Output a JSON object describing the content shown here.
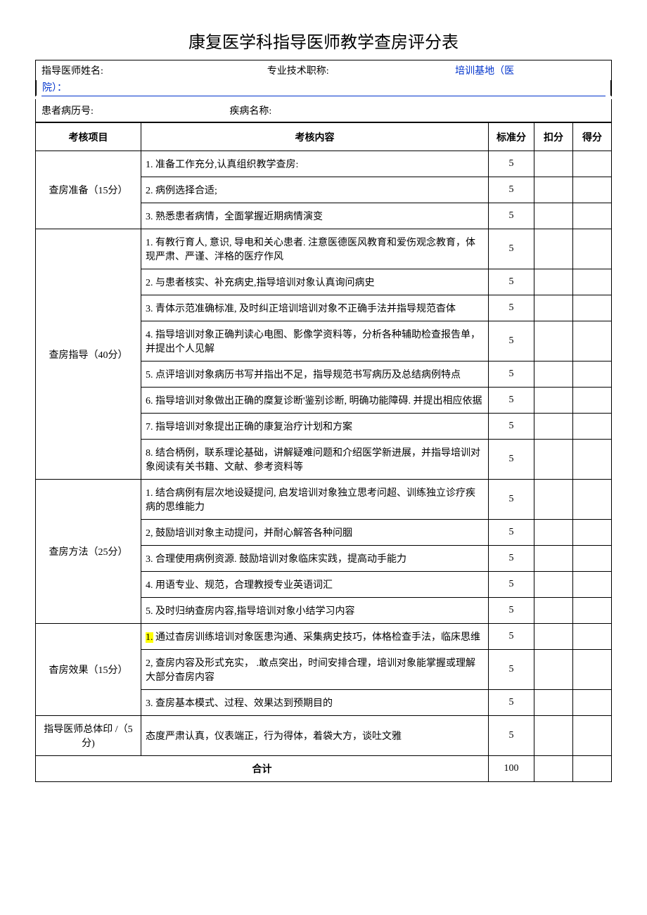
{
  "title": "康复医学科指导医师教学查房评分表",
  "header": {
    "instructor_name_label": "指导医师姓名:",
    "professional_title_label": "专业技术职称:",
    "training_base_label": "培训基地（医",
    "hospital_close": "院）：",
    "patient_id_label": "患者病历号:",
    "disease_name_label": "疾病名称:"
  },
  "columns": {
    "category": "考核项目",
    "content": "考核内容",
    "standard_score": "标准分",
    "deduction": "扣分",
    "final_score": "得分"
  },
  "sections": [
    {
      "category": "查房准备（15分）",
      "rows": [
        {
          "content": "1. 准备工作充分,认真组织教学查房:",
          "score": "5"
        },
        {
          "content": "2. 病例选择合适;",
          "score": "5"
        },
        {
          "content": "3. 熟悉患者病情，全面掌握近期病情演变",
          "score": "5"
        }
      ]
    },
    {
      "category": "查房指导（40分）",
      "rows": [
        {
          "content": "1. 有教行育人, 意识, 导电和关心患者. 注意医德医风教育和爱伤观念教育，体现严肃、严谨、泮格的医疗作风",
          "score": "5"
        },
        {
          "content": "2. 与患者核实、补充病史,指导培训对象认真询问病史",
          "score": "5"
        },
        {
          "content": "3. 青体示范准确标准, 及时纠正培训培训对象不正确手法并指导规范杳体",
          "score": "5"
        },
        {
          "content": "4. 指导培训对象正确判读心电图、影像学资料等，分析各种辅助检查报告单，并提出个人见解",
          "score": "5"
        },
        {
          "content": "5. 点评培训对象病历书写并指出不足，指导规范书写病历及总结病例特点",
          "score": "5"
        },
        {
          "content": "6. 指导培训对象做出正确的糜复诊断'鉴别诊断, 明确功能障碍. 并提出相应依据",
          "score": "5"
        },
        {
          "content": "7. 指导培训对象提出正确的康复治疗计划和方案",
          "score": "5"
        },
        {
          "content": "8. 结合柄例，联系理论基础，讲解疑难问题和介绍医学新进展，并指导培训对象阅读有关书籍、文献、参考资料等",
          "score": "5"
        }
      ]
    },
    {
      "category": "查房方法（25分）",
      "rows": [
        {
          "content": "1. 结合病例有层次地设疑提问, 启发培训对象独立思考问超、训练独立诊疗疾病的思维能力",
          "score": "5"
        },
        {
          "content": "2, 鼓励培训对象主动提问，并耐心解答各种问胭",
          "score": "5"
        },
        {
          "content": "3. 合理使用病例资源. 鼓励培训对象临床实践，提高动手能力",
          "score": "5"
        },
        {
          "content": "4. 用语专业、规范，合理教授专业英语词汇",
          "score": "5"
        },
        {
          "content": "5. 及时归纳查房内容,指导培训对象小结学习内容",
          "score": "5"
        }
      ]
    },
    {
      "category": "杳房效果（15分）",
      "rows": [
        {
          "content_prefix": "1.",
          "content_rest": " 通过杳房训练培训对象医患沟通、采集病史技巧，体格检查手法，临床思维",
          "score": "5",
          "highlight_prefix": true
        },
        {
          "content": "2, 查房内容及形式充实， .敢点突出，时间安排合理，培训对象能掌握或理解大部分杳房内容",
          "score": "5"
        },
        {
          "content": "3. 查房基本模式、过程、效果达到预期目的",
          "score": "5"
        }
      ]
    },
    {
      "category": "指导医师总体印 /（5分)",
      "rows": [
        {
          "content": "态度严肃认真，仪表端正，行为得体，着袋大方，谈吐文雅",
          "score": "5"
        }
      ]
    }
  ],
  "total": {
    "label": "合计",
    "score": "100"
  }
}
